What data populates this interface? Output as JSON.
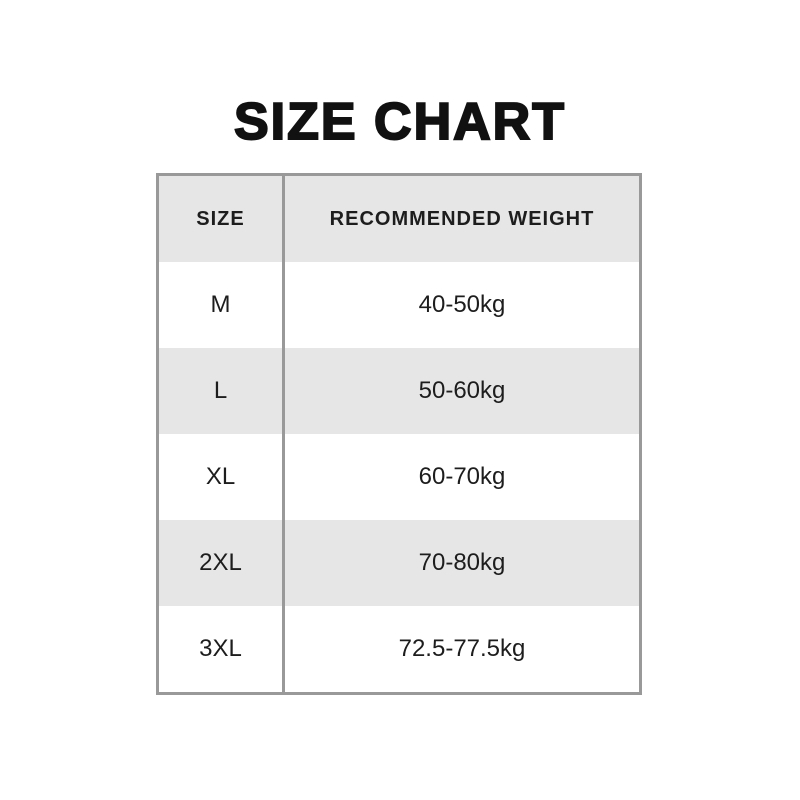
{
  "title": "SIZE CHART",
  "chart_data": {
    "type": "table",
    "title": "SIZE CHART",
    "columns": [
      "SIZE",
      "RECOMMENDED WEIGHT"
    ],
    "rows": [
      [
        "M",
        "40-50kg"
      ],
      [
        "L",
        "50-60kg"
      ],
      [
        "XL",
        "60-70kg"
      ],
      [
        "2XL",
        "70-80kg"
      ],
      [
        "3XL",
        "72.5-77.5kg"
      ]
    ]
  },
  "colors": {
    "background": "#ffffff",
    "title": "#111111",
    "text": "#1d1d1d",
    "border": "#999999",
    "row_bg": "#ffffff",
    "row_alt_bg": "#e6e6e6"
  }
}
